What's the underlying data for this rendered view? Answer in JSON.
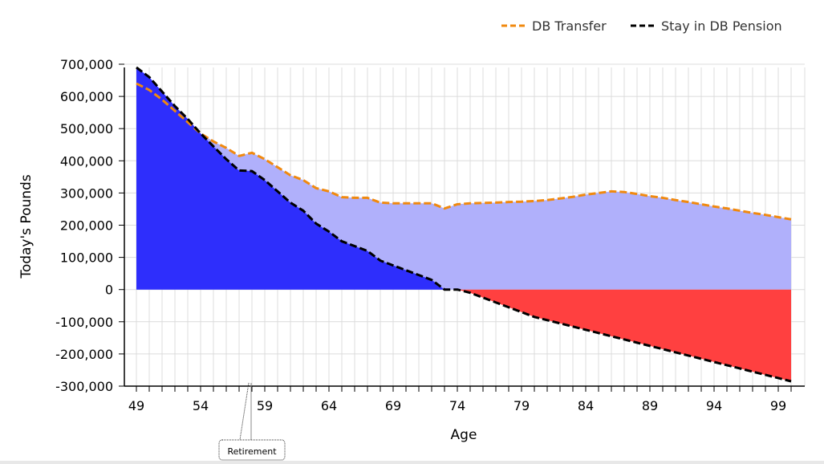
{
  "chart_data": {
    "type": "area",
    "title": "",
    "xlabel": "Age",
    "ylabel": "Today's Pounds",
    "xlim": [
      49,
      100
    ],
    "ylim": [
      -300000,
      700000
    ],
    "x_ticks": [
      49,
      54,
      59,
      64,
      69,
      74,
      79,
      84,
      89,
      94,
      99
    ],
    "y_ticks": [
      -300000,
      -200000,
      -100000,
      0,
      100000,
      200000,
      300000,
      400000,
      500000,
      600000,
      700000
    ],
    "y_tick_labels": [
      "-300,000",
      "-200,000",
      "-100,000",
      "0",
      "100,000",
      "200,000",
      "300,000",
      "400,000",
      "500,000",
      "600,000",
      "700,000"
    ],
    "grid": true,
    "legend_position": "top-right",
    "x": [
      49,
      50,
      51,
      52,
      53,
      54,
      55,
      56,
      57,
      58,
      59,
      60,
      61,
      62,
      63,
      64,
      65,
      66,
      67,
      68,
      69,
      70,
      71,
      72,
      73,
      74,
      75,
      76,
      77,
      78,
      79,
      80,
      81,
      82,
      83,
      84,
      85,
      86,
      87,
      88,
      89,
      90,
      91,
      92,
      93,
      94,
      95,
      96,
      97,
      98,
      99,
      100
    ],
    "series": [
      {
        "name": "DB Transfer",
        "color": "#f0890f",
        "fill": "#b0b0fb",
        "values": [
          640000,
          620000,
          590000,
          555000,
          520000,
          485000,
          460000,
          440000,
          415000,
          425000,
          405000,
          380000,
          355000,
          340000,
          315000,
          305000,
          287000,
          285000,
          285000,
          270000,
          268000,
          268000,
          268000,
          268000,
          252000,
          265000,
          268000,
          269000,
          270000,
          272000,
          273000,
          275000,
          278000,
          283000,
          288000,
          295000,
          300000,
          305000,
          303000,
          297000,
          290000,
          285000,
          278000,
          272000,
          265000,
          258000,
          252000,
          245000,
          238000,
          232000,
          225000,
          218000
        ]
      },
      {
        "name": "Stay in DB Pension",
        "color": "#000000",
        "fill_positive": "#2e2efc",
        "fill_negative": "#ff4040",
        "values": [
          690000,
          660000,
          615000,
          570000,
          530000,
          485000,
          445000,
          405000,
          370000,
          368000,
          340000,
          305000,
          270000,
          245000,
          205000,
          180000,
          150000,
          135000,
          120000,
          90000,
          75000,
          60000,
          45000,
          30000,
          0,
          0,
          -10000,
          -25000,
          -40000,
          -55000,
          -70000,
          -85000,
          -95000,
          -105000,
          -115000,
          -125000,
          -135000,
          -145000,
          -155000,
          -165000,
          -175000,
          -185000,
          -195000,
          -205000,
          -215000,
          -225000,
          -235000,
          -245000,
          -255000,
          -265000,
          -275000,
          -285000
        ]
      }
    ],
    "annotations": [
      {
        "x": 58,
        "text": "Retirement"
      }
    ]
  }
}
